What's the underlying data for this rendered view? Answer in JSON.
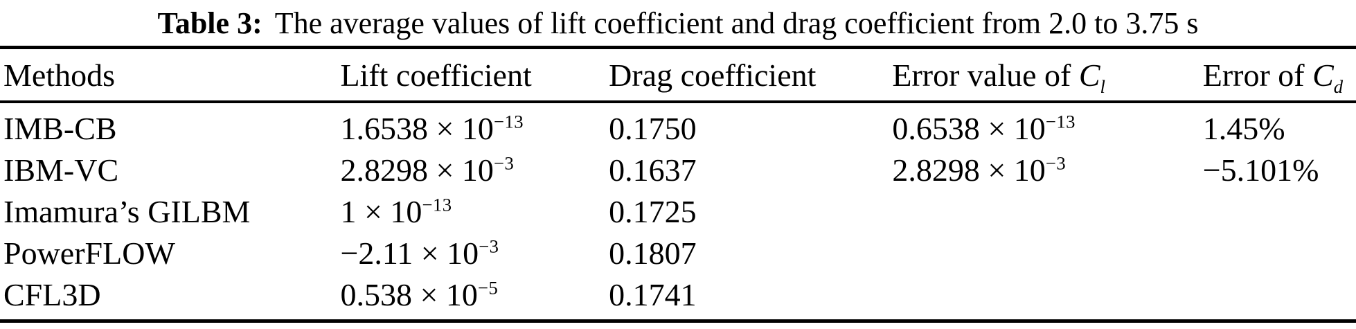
{
  "table": {
    "caption_label": "Table 3:",
    "caption_text": "The average values of lift coefficient and drag coefficient from 2.0 to 3.75 s",
    "notation": {
      "times": "×",
      "base": "10"
    },
    "columns": [
      {
        "key": "method",
        "text": "Methods"
      },
      {
        "key": "lift",
        "text": "Lift coefficient"
      },
      {
        "key": "drag",
        "text": "Drag coefficient"
      },
      {
        "key": "error-cl",
        "text": "Error value of",
        "var": "C",
        "sub": "l"
      },
      {
        "key": "error-cd",
        "text": "Error of",
        "var": "C",
        "sub": "d"
      }
    ],
    "rows": [
      {
        "method": "IMB-CB",
        "lift": {
          "mantissa": "1.6538",
          "exp": "−13"
        },
        "drag": "0.1750",
        "error_cl": {
          "mantissa": "0.6538",
          "exp": "−13"
        },
        "error_cd": "1.45%"
      },
      {
        "method": "IBM-VC",
        "lift": {
          "mantissa": "2.8298",
          "exp": "−3"
        },
        "drag": "0.1637",
        "error_cl": {
          "mantissa": "2.8298",
          "exp": "−3"
        },
        "error_cd": "−5.101%"
      },
      {
        "method": "Imamura’s GILBM",
        "lift": {
          "mantissa": "1",
          "exp": "−13"
        },
        "drag": "0.1725",
        "error_cl": null,
        "error_cd": null
      },
      {
        "method": "PowerFLOW",
        "lift": {
          "mantissa": "−2.11",
          "exp": "−3"
        },
        "drag": "0.1807",
        "error_cl": null,
        "error_cd": null
      },
      {
        "method": "CFL3D",
        "lift": {
          "mantissa": "0.538",
          "exp": "−5"
        },
        "drag": "0.1741",
        "error_cl": null,
        "error_cd": null
      }
    ]
  }
}
